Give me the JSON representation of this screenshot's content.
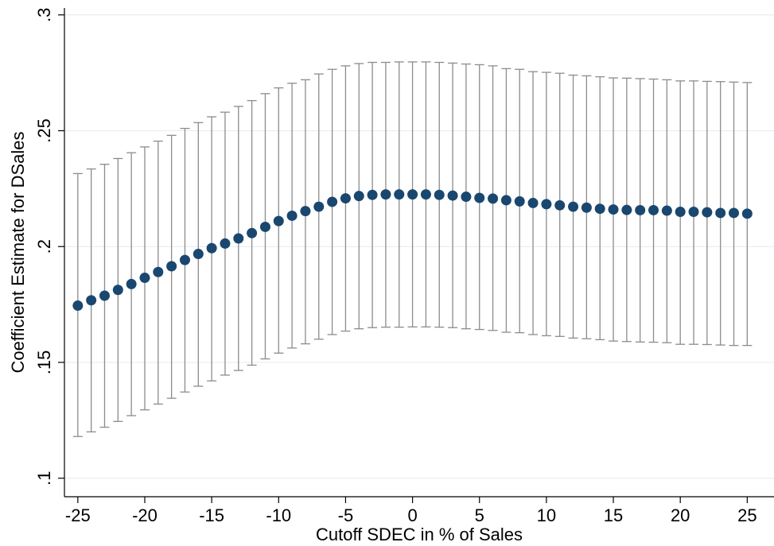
{
  "chart_data": {
    "type": "scatter",
    "title": "",
    "xlabel": "Cutoff SDEC in % of Sales",
    "ylabel": "Coefficient Estimate for DSales",
    "xlim": [
      -26,
      27
    ],
    "ylim": [
      0.092,
      0.303
    ],
    "xticks": [
      -25,
      -20,
      -15,
      -10,
      -5,
      0,
      5,
      10,
      15,
      20,
      25
    ],
    "xtick_labels": [
      "-25",
      "-20",
      "-15",
      "-10",
      "-5",
      "0",
      "5",
      "10",
      "15",
      "20",
      "25"
    ],
    "yticks": [
      0.1,
      0.15,
      0.2,
      0.25,
      0.3
    ],
    "ytick_labels": [
      ".1",
      ".15",
      ".2",
      ".25",
      ".3"
    ],
    "grid": true,
    "legend": "none",
    "colors": {
      "marker": "#1a476f",
      "errorbar": "#8c8c8c",
      "grid": "#e8eef2",
      "axis": "#000000"
    },
    "x": [
      -25,
      -24,
      -23,
      -22,
      -21,
      -20,
      -19,
      -18,
      -17,
      -16,
      -15,
      -14,
      -13,
      -12,
      -11,
      -10,
      -9,
      -8,
      -7,
      -6,
      -5,
      -4,
      -3,
      -2,
      -1,
      0,
      1,
      2,
      3,
      4,
      5,
      6,
      7,
      8,
      9,
      10,
      11,
      12,
      13,
      14,
      15,
      16,
      17,
      18,
      19,
      20,
      21,
      22,
      23,
      24,
      25
    ],
    "estimate": [
      0.1745,
      0.1768,
      0.1788,
      0.1813,
      0.1838,
      0.1865,
      0.189,
      0.1915,
      0.1942,
      0.1968,
      0.1993,
      0.2013,
      0.2035,
      0.2058,
      0.2085,
      0.211,
      0.2133,
      0.2153,
      0.2172,
      0.2193,
      0.2208,
      0.2218,
      0.2223,
      0.2225,
      0.2225,
      0.2225,
      0.2225,
      0.2223,
      0.222,
      0.2215,
      0.221,
      0.2207,
      0.22,
      0.2195,
      0.2188,
      0.2183,
      0.2178,
      0.2172,
      0.2168,
      0.2163,
      0.216,
      0.2158,
      0.2157,
      0.2157,
      0.2155,
      0.215,
      0.215,
      0.2148,
      0.2145,
      0.2145,
      0.2142
    ],
    "ci_upper": [
      0.2315,
      0.2335,
      0.2355,
      0.238,
      0.2405,
      0.243,
      0.2455,
      0.248,
      0.251,
      0.2535,
      0.256,
      0.258,
      0.2605,
      0.263,
      0.266,
      0.2685,
      0.2705,
      0.272,
      0.2745,
      0.2765,
      0.278,
      0.279,
      0.2795,
      0.2795,
      0.2797,
      0.2797,
      0.2797,
      0.2795,
      0.2792,
      0.2788,
      0.2785,
      0.278,
      0.2768,
      0.2765,
      0.2755,
      0.2752,
      0.2748,
      0.274,
      0.2737,
      0.2733,
      0.2728,
      0.2727,
      0.2725,
      0.2723,
      0.272,
      0.2715,
      0.2715,
      0.2713,
      0.2712,
      0.271,
      0.2708
    ],
    "ci_lower": [
      0.118,
      0.12,
      0.122,
      0.1245,
      0.127,
      0.1295,
      0.132,
      0.1345,
      0.1372,
      0.1397,
      0.142,
      0.1445,
      0.1465,
      0.1488,
      0.1515,
      0.154,
      0.1562,
      0.158,
      0.16,
      0.162,
      0.1635,
      0.1645,
      0.165,
      0.1652,
      0.1652,
      0.1653,
      0.1653,
      0.1652,
      0.165,
      0.1645,
      0.1642,
      0.1638,
      0.163,
      0.1628,
      0.162,
      0.1615,
      0.1612,
      0.1605,
      0.1602,
      0.1598,
      0.1592,
      0.159,
      0.1588,
      0.1587,
      0.1585,
      0.1578,
      0.1578,
      0.1577,
      0.1575,
      0.1573,
      0.1573
    ]
  }
}
